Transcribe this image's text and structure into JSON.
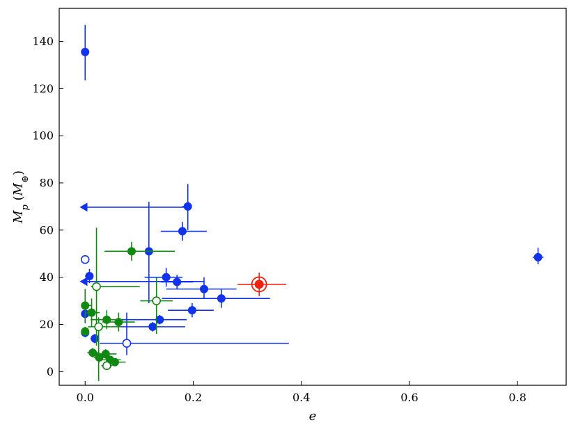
{
  "chart_data": {
    "type": "scatter",
    "title": "",
    "xlabel": "e",
    "ylabel": "M_p (M_⊕)",
    "xlim": [
      -0.048,
      0.89
    ],
    "ylim": [
      -5.8,
      154
    ],
    "x_ticks": [
      0.0,
      0.2,
      0.4,
      0.6,
      0.8
    ],
    "x_tick_labels": [
      "0.0",
      "0.2",
      "0.4",
      "0.6",
      "0.8"
    ],
    "y_ticks": [
      0,
      20,
      40,
      60,
      80,
      100,
      120,
      140
    ],
    "y_tick_labels": [
      "0",
      "20",
      "40",
      "60",
      "80",
      "100",
      "120",
      "140"
    ],
    "grid": false,
    "colors": {
      "blue": "#1133ee",
      "green": "#118811",
      "red": "#ee2211"
    },
    "series": [
      {
        "color": "blue",
        "marker": "filled",
        "points": [
          {
            "x": 0.0,
            "y": 135.5,
            "yerr": [
              12,
              11.5
            ]
          },
          {
            "x": 0.19,
            "y": 70,
            "xerr": [
              0.01,
              0.005
            ],
            "yerr": [
              10,
              9.5
            ]
          },
          {
            "x": 0.18,
            "y": 59.5,
            "xerr": [
              0.04,
              0.045
            ],
            "yerr": [
              4,
              4
            ]
          },
          {
            "x": 0.118,
            "y": 51,
            "yerr": [
              22,
              21
            ]
          },
          {
            "x": 0.15,
            "y": 40,
            "xerr": [
              0.04,
              0.03
            ],
            "yerr": [
              4,
              4
            ]
          },
          {
            "x": 0.17,
            "y": 38,
            "xerr": [
              0.03,
              0.03
            ],
            "yerr": [
              3,
              3
            ]
          },
          {
            "x": 0.22,
            "y": 35,
            "xerr": [
              0.07,
              0.06
            ],
            "yerr": [
              4,
              5
            ]
          },
          {
            "x": 0.252,
            "y": 31,
            "xerr": [
              0.11,
              0.09
            ],
            "yerr": [
              4,
              4
            ]
          },
          {
            "x": 0.198,
            "y": 26,
            "xerr": [
              0.045,
              0.04
            ],
            "yerr": [
              3,
              3
            ]
          },
          {
            "x": 0.138,
            "y": 22,
            "xerr": [
              0.07,
              0.05
            ],
            "yerr": [
              2,
              2
            ]
          },
          {
            "x": 0.125,
            "y": 19,
            "xerr": [
              0.06,
              0.06
            ],
            "yerr": [
              2,
              2
            ]
          },
          {
            "x": 0.008,
            "y": 40.5,
            "xerr": [
              0.008,
              0.004
            ],
            "yerr": [
              3,
              3
            ]
          },
          {
            "x": 0.0,
            "y": 24.5,
            "yerr": [
              4,
              5
            ]
          },
          {
            "x": 0.0,
            "y": 16.5,
            "yerr": [
              2,
              2
            ]
          },
          {
            "x": 0.018,
            "y": 14,
            "xerr": [
              0.008,
              0.008
            ],
            "yerr": [
              2,
              2
            ]
          },
          {
            "x": 0.838,
            "y": 48.5,
            "xerr": [
              0.01,
              0.01
            ],
            "yerr": [
              3,
              4
            ]
          }
        ]
      },
      {
        "color": "blue",
        "marker": "open",
        "points": [
          {
            "x": 0.0,
            "y": 47.5
          },
          {
            "x": 0.077,
            "y": 12,
            "xerr": [
              0.05,
              0.3
            ],
            "yerr": [
              5,
              13
            ]
          }
        ]
      },
      {
        "color": "blue",
        "marker": "upper-limit-left",
        "points": [
          {
            "x": 0.19,
            "y": 69.7,
            "x_to": -0.01
          },
          {
            "x": 0.22,
            "y": 38.2,
            "x_to": -0.01
          }
        ]
      },
      {
        "color": "green",
        "marker": "filled",
        "points": [
          {
            "x": 0.086,
            "y": 51,
            "xerr": [
              0.05,
              0.08
            ],
            "yerr": [
              4,
              4
            ]
          },
          {
            "x": 0.0,
            "y": 28,
            "xerr": [
              0.003,
              0.012
            ],
            "yerr": [
              7,
              7
            ]
          },
          {
            "x": 0.0,
            "y": 17,
            "yerr": [
              2,
              2
            ]
          },
          {
            "x": 0.012,
            "y": 25,
            "xerr": [
              0.01,
              0.015
            ],
            "yerr": [
              6,
              6
            ]
          },
          {
            "x": 0.04,
            "y": 22,
            "xerr": [
              0.03,
              0.02
            ],
            "yerr": [
              4,
              4
            ]
          },
          {
            "x": 0.062,
            "y": 21,
            "xerr": [
              0.03,
              0.03
            ],
            "yerr": [
              4,
              4
            ]
          },
          {
            "x": 0.014,
            "y": 8,
            "xerr": [
              0.01,
              0.01
            ],
            "yerr": [
              2,
              2
            ]
          },
          {
            "x": 0.026,
            "y": 6,
            "xerr": [
              0.01,
              0.02
            ],
            "yerr": [
              2,
              2
            ]
          },
          {
            "x": 0.038,
            "y": 7.5,
            "xerr": [
              0.02,
              0.02
            ],
            "yerr": [
              2,
              2
            ]
          },
          {
            "x": 0.046,
            "y": 5,
            "xerr": [
              0.02,
              0.02
            ],
            "yerr": [
              1.5,
              1.5
            ]
          },
          {
            "x": 0.055,
            "y": 4,
            "xerr": [
              0.02,
              0.02
            ],
            "yerr": [
              1.5,
              1.5
            ]
          }
        ]
      },
      {
        "color": "green",
        "marker": "open",
        "points": [
          {
            "x": 0.021,
            "y": 36,
            "xerr": [
              0.01,
              0.08
            ],
            "yerr": [
              25,
              25
            ]
          },
          {
            "x": 0.132,
            "y": 30,
            "xerr": [
              0.03,
              0.03
            ],
            "yerr": [
              14,
              10
            ]
          },
          {
            "x": 0.025,
            "y": 19,
            "xerr": [
              0.02,
              0.04
            ],
            "yerr": [
              23,
              4
            ]
          },
          {
            "x": 0.04,
            "y": 2.5,
            "xerr": [
              0.01,
              0.01
            ],
            "yerr": [
              1,
              1
            ]
          }
        ]
      },
      {
        "color": "red",
        "marker": "target",
        "points": [
          {
            "x": 0.322,
            "y": 37,
            "xerr": [
              0.04,
              0.05
            ],
            "yerr": [
              5,
              5
            ]
          }
        ]
      }
    ]
  }
}
